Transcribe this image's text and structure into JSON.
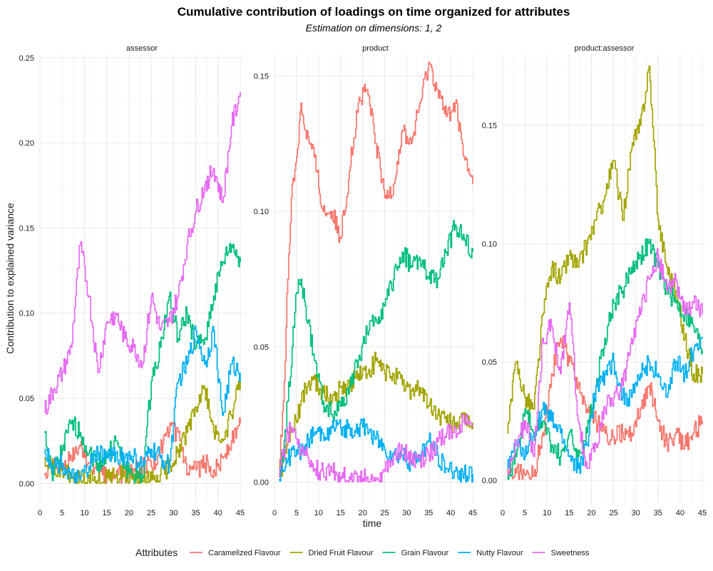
{
  "chart_data": {
    "type": "line",
    "title": "Cumulative contribution of loadings on time organized for attributes",
    "subtitle": "Estimation on dimensions: 1, 2",
    "xlabel": "time",
    "ylabel": "Contribution to explained variance",
    "legend": {
      "title": "Attributes",
      "position": "bottom",
      "items": [
        "Caramelized Flavour",
        "Dried Fruit Flavour",
        "Grain Flavour",
        "Nutty Flavour",
        "Sweetness"
      ]
    },
    "colors": {
      "Caramelized Flavour": "#F8766D",
      "Dried Fruit Flavour": "#A3A500",
      "Grain Flavour": "#00BF7D",
      "Nutty Flavour": "#00B0F6",
      "Sweetness": "#E76BF3"
    },
    "grid": true,
    "x_ticks": [
      0,
      5,
      10,
      15,
      20,
      25,
      30,
      35,
      40,
      45
    ],
    "xlim": [
      0,
      45.8
    ],
    "panels": [
      {
        "facet": "assessor",
        "ylim": [
          -0.012,
          0.252
        ],
        "y_ticks": [
          "0.00",
          "0.05",
          "0.10",
          "0.15",
          "0.20",
          "0.25"
        ],
        "x": [
          1,
          3,
          5,
          7,
          9,
          11,
          13,
          15,
          17,
          19,
          21,
          23,
          25,
          27,
          29,
          31,
          33,
          35,
          37,
          39,
          41,
          43,
          45
        ],
        "series": [
          {
            "name": "Caramelized Flavour",
            "values": [
              0.005,
              0.01,
              0.008,
              0.015,
              0.022,
              0.012,
              0.008,
              0.004,
              0.005,
              0.006,
              0.008,
              0.01,
              0.01,
              0.02,
              0.03,
              0.03,
              0.005,
              0.008,
              0.012,
              0.008,
              0.015,
              0.025,
              0.035
            ]
          },
          {
            "name": "Dried Fruit Flavour",
            "values": [
              0.015,
              0.008,
              0.008,
              0.003,
              0.002,
              0.005,
              0.002,
              0.003,
              0.004,
              0.005,
              0.002,
              0.001,
              0.002,
              0.005,
              0.01,
              0.02,
              0.03,
              0.045,
              0.055,
              0.03,
              0.025,
              0.04,
              0.06
            ]
          },
          {
            "name": "Grain Flavour",
            "values": [
              0.03,
              0.005,
              0.02,
              0.035,
              0.03,
              0.018,
              0.012,
              0.015,
              0.025,
              0.01,
              0.005,
              0.003,
              0.06,
              0.08,
              0.11,
              0.085,
              0.1,
              0.08,
              0.085,
              0.11,
              0.13,
              0.14,
              0.13
            ]
          },
          {
            "name": "Nutty Flavour",
            "values": [
              0.02,
              0.01,
              0.012,
              0.003,
              0.002,
              0.01,
              0.018,
              0.015,
              0.018,
              0.015,
              0.016,
              0.01,
              0.02,
              0.015,
              0.01,
              0.06,
              0.07,
              0.09,
              0.07,
              0.09,
              0.04,
              0.07,
              0.065
            ]
          },
          {
            "name": "Sweetness",
            "values": [
              0.042,
              0.055,
              0.065,
              0.08,
              0.14,
              0.11,
              0.065,
              0.095,
              0.1,
              0.085,
              0.08,
              0.07,
              0.11,
              0.09,
              0.095,
              0.11,
              0.14,
              0.16,
              0.175,
              0.185,
              0.165,
              0.21,
              0.23
            ]
          }
        ]
      },
      {
        "facet": "product",
        "ylim": [
          -0.008,
          0.158
        ],
        "y_ticks": [
          "0.00",
          "0.05",
          "0.10",
          "0.15"
        ],
        "x": [
          1,
          2,
          3,
          4,
          5,
          6,
          7,
          9,
          11,
          13,
          15,
          17,
          19,
          21,
          23,
          25,
          27,
          29,
          31,
          33,
          35,
          37,
          39,
          41,
          43,
          45
        ],
        "series": [
          {
            "name": "Caramelized Flavour",
            "values": [
              0.005,
              0.03,
              0.075,
              0.11,
              0.12,
              0.14,
              0.13,
              0.12,
              0.1,
              0.1,
              0.09,
              0.115,
              0.14,
              0.145,
              0.125,
              0.105,
              0.11,
              0.13,
              0.125,
              0.14,
              0.155,
              0.145,
              0.135,
              0.14,
              0.12,
              0.11
            ]
          },
          {
            "name": "Dried Fruit Flavour",
            "values": [
              0.002,
              0.008,
              0.015,
              0.02,
              0.022,
              0.03,
              0.035,
              0.038,
              0.033,
              0.03,
              0.035,
              0.035,
              0.04,
              0.04,
              0.045,
              0.04,
              0.04,
              0.036,
              0.034,
              0.035,
              0.028,
              0.025,
              0.022,
              0.022,
              0.022,
              0.022
            ]
          },
          {
            "name": "Grain Flavour",
            "values": [
              0.003,
              0.01,
              0.03,
              0.05,
              0.07,
              0.075,
              0.065,
              0.045,
              0.03,
              0.025,
              0.028,
              0.035,
              0.045,
              0.055,
              0.06,
              0.065,
              0.075,
              0.085,
              0.08,
              0.082,
              0.075,
              0.075,
              0.085,
              0.095,
              0.09,
              0.085
            ]
          },
          {
            "name": "Nutty Flavour",
            "values": [
              0.001,
              0.004,
              0.008,
              0.012,
              0.012,
              0.01,
              0.014,
              0.018,
              0.018,
              0.02,
              0.02,
              0.02,
              0.02,
              0.02,
              0.016,
              0.012,
              0.01,
              0.01,
              0.007,
              0.01,
              0.015,
              0.01,
              0.005,
              0.004,
              0.003,
              0.003
            ]
          },
          {
            "name": "Sweetness",
            "values": [
              0.002,
              0.01,
              0.018,
              0.02,
              0.016,
              0.012,
              0.01,
              0.005,
              0.004,
              0.004,
              0.002,
              0.002,
              0.002,
              0.002,
              0.001,
              0.004,
              0.01,
              0.012,
              0.008,
              0.008,
              0.01,
              0.015,
              0.018,
              0.02,
              0.022,
              0.021
            ]
          }
        ]
      },
      {
        "facet": "product:assessor",
        "ylim": [
          -0.01,
          0.18
        ],
        "y_ticks": [
          "0.00",
          "0.05",
          "0.10",
          "0.15"
        ],
        "x": [
          1,
          3,
          5,
          7,
          9,
          11,
          13,
          15,
          17,
          19,
          21,
          23,
          25,
          27,
          29,
          31,
          33,
          35,
          37,
          39,
          41,
          43,
          45
        ],
        "series": [
          {
            "name": "Caramelized Flavour",
            "values": [
              0.005,
              0.003,
              0.002,
              0.002,
              0.02,
              0.045,
              0.06,
              0.05,
              0.04,
              0.03,
              0.025,
              0.02,
              0.018,
              0.02,
              0.02,
              0.03,
              0.04,
              0.025,
              0.015,
              0.02,
              0.015,
              0.02,
              0.025
            ]
          },
          {
            "name": "Dried Fruit Flavour",
            "values": [
              0.02,
              0.05,
              0.035,
              0.03,
              0.07,
              0.09,
              0.085,
              0.095,
              0.09,
              0.1,
              0.11,
              0.12,
              0.135,
              0.11,
              0.14,
              0.15,
              0.175,
              0.11,
              0.09,
              0.08,
              0.06,
              0.045,
              0.045
            ]
          },
          {
            "name": "Grain Flavour",
            "values": [
              0.002,
              0.01,
              0.03,
              0.02,
              0.025,
              0.015,
              0.01,
              0.02,
              0.01,
              0.02,
              0.04,
              0.06,
              0.075,
              0.08,
              0.09,
              0.095,
              0.1,
              0.09,
              0.08,
              0.075,
              0.07,
              0.065,
              0.055
            ]
          },
          {
            "name": "Nutty Flavour",
            "values": [
              0.005,
              0.015,
              0.01,
              0.02,
              0.03,
              0.025,
              0.02,
              0.01,
              0.005,
              0.015,
              0.04,
              0.045,
              0.05,
              0.035,
              0.035,
              0.045,
              0.05,
              0.045,
              0.035,
              0.05,
              0.045,
              0.055,
              0.06
            ]
          },
          {
            "name": "Sweetness",
            "values": [
              0.002,
              0.015,
              0.025,
              0.01,
              0.06,
              0.065,
              0.045,
              0.075,
              0.025,
              0.005,
              0.015,
              0.03,
              0.035,
              0.04,
              0.06,
              0.07,
              0.085,
              0.095,
              0.08,
              0.085,
              0.07,
              0.075,
              0.07
            ]
          }
        ]
      }
    ]
  }
}
